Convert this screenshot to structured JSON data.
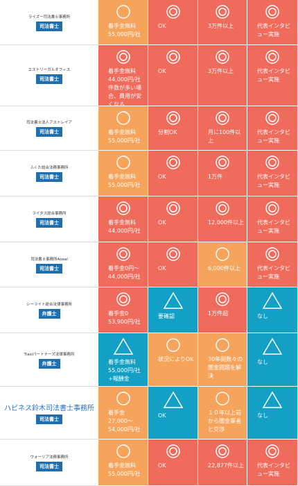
{
  "colors": {
    "double-circle": "#ef6b5b",
    "circle": "#f6a45c",
    "triangle": "#14a0c4"
  },
  "rows": [
    {
      "name": "ライズ一司法書士事務所",
      "badge": "司法書士",
      "cells": [
        {
          "mark": "circle",
          "text": "着手金無料 55,000円/社"
        },
        {
          "mark": "double-circle",
          "text": "OK"
        },
        {
          "mark": "double-circle",
          "text": "3万件以上"
        },
        {
          "mark": "double-circle",
          "text": "代表インタビュー実施"
        }
      ]
    },
    {
      "name": "エストリーガルオフィス",
      "badge": "司法書士",
      "cells": [
        {
          "mark": "double-circle",
          "text": "着手金無料 44,000円/社 件数が多い場合、費用が安くなる"
        },
        {
          "mark": "double-circle",
          "text": "OK"
        },
        {
          "mark": "double-circle",
          "text": "3万件以上"
        },
        {
          "mark": "double-circle",
          "text": "代表インタビュー実施"
        }
      ]
    },
    {
      "name": "司法書士法人アストレイア",
      "badge": "司法書士",
      "cells": [
        {
          "mark": "circle",
          "text": "着手金無料 55,000円/社"
        },
        {
          "mark": "double-circle",
          "text": "分割OK"
        },
        {
          "mark": "double-circle",
          "text": "月に100件以上"
        },
        {
          "mark": "double-circle",
          "text": "代表インタビュー実施"
        }
      ]
    },
    {
      "name": "ふくた総合法務事務所",
      "badge": "司法書士",
      "cells": [
        {
          "mark": "circle",
          "text": "着手金無料 55,000円/社"
        },
        {
          "mark": "double-circle",
          "text": "OK"
        },
        {
          "mark": "double-circle",
          "text": "1万件"
        },
        {
          "mark": "double-circle",
          "text": "代表インタビュー実施"
        }
      ]
    },
    {
      "name": "ライタス総合事務所",
      "badge": "司法書士",
      "cells": [
        {
          "mark": "double-circle",
          "text": "着手金無料 44,000円/社"
        },
        {
          "mark": "double-circle",
          "text": "OK"
        },
        {
          "mark": "double-circle",
          "text": "12,000件以上"
        },
        {
          "mark": "double-circle",
          "text": "代表インタビュー実施"
        }
      ]
    },
    {
      "name": "司法書士事務所Aoeal",
      "badge": "司法書士",
      "cells": [
        {
          "mark": "double-circle",
          "text": "着手金0円〜44,000円/社"
        },
        {
          "mark": "double-circle",
          "text": "OK"
        },
        {
          "mark": "circle",
          "text": "6,000件以上"
        },
        {
          "mark": "double-circle",
          "text": "代表インタビュー実施"
        }
      ]
    },
    {
      "name": "シーライト総合法律事務所",
      "badge": "弁護士",
      "cells": [
        {
          "mark": "double-circle",
          "text": "着手金0 53,900円/社"
        },
        {
          "mark": "triangle",
          "text": "要確認"
        },
        {
          "mark": "double-circle",
          "text": "1万件超"
        },
        {
          "mark": "triangle",
          "text": "なし"
        }
      ]
    },
    {
      "name": "Tiaslパートナーズ法律事務所",
      "badge": "弁護士",
      "cells": [
        {
          "mark": "triangle",
          "text": "着手金無料 55,000円/社+報酬金"
        },
        {
          "mark": "circle",
          "text": "状況によりOK"
        },
        {
          "mark": "circle",
          "text": "30年間数々の闇金問題を解決"
        },
        {
          "mark": "triangle",
          "text": "なし"
        }
      ]
    },
    {
      "name": "ハピネス鈴木司法書士事務所",
      "badge": "司法書士",
      "cells": [
        {
          "mark": "circle",
          "text": "着手金 27,000〜54,000円/社"
        },
        {
          "mark": "triangle",
          "text": "OK"
        },
        {
          "mark": "circle",
          "text": "１０年以上前から闇金業者と交渉"
        },
        {
          "mark": "triangle",
          "text": "なし"
        }
      ]
    },
    {
      "name": "ウォーリア法務事務所",
      "badge": "司法書士",
      "cells": [
        {
          "mark": "circle",
          "text": "着手金無料 55,000円/社"
        },
        {
          "mark": "double-circle",
          "text": "OK"
        },
        {
          "mark": "double-circle",
          "text": "22,877件以上"
        },
        {
          "mark": "double-circle",
          "text": "代表インタビュー実施"
        }
      ]
    }
  ]
}
